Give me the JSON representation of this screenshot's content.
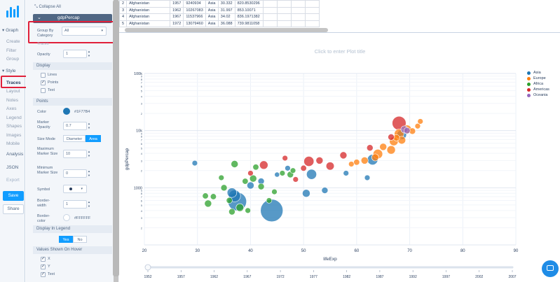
{
  "nav": {
    "sections": [
      "Graph",
      "Style"
    ],
    "graph_items": [
      "Create",
      "Filter",
      "Group"
    ],
    "style_items": [
      "Traces",
      "Layout",
      "Notes",
      "Axes",
      "Legend",
      "Shapes",
      "Images",
      "Mobile"
    ],
    "other_items": [
      "Analysis",
      "JSON",
      "Export"
    ],
    "save": "Save",
    "share": "Share"
  },
  "panel": {
    "collapse_all": "Collapse All",
    "trace_name": "gdpPercap",
    "group_by_label": "Group By Category",
    "group_by_value": "All",
    "traces_label": "Traces",
    "opacity_label": "Opacity",
    "opacity_value": "1",
    "display_header": "Display",
    "display_options": [
      {
        "label": "Lines",
        "checked": false
      },
      {
        "label": "Points",
        "checked": true
      },
      {
        "label": "Text",
        "checked": false
      }
    ],
    "points_header": "Points",
    "color_label": "Color",
    "color_value": "#1F77B4",
    "marker_opacity_label": "Marker Opacity",
    "marker_opacity_value": "0.7",
    "size_mode_label": "Size Mode",
    "size_mode_options": [
      "Diameter",
      "Area"
    ],
    "max_marker_label": "Maximum Marker Size",
    "max_marker_value": "10",
    "min_marker_label": "Minimum Marker Size",
    "min_marker_value": "0",
    "symbol_label": "Symbol",
    "border_width_label": "Border-width",
    "border_width_value": "1",
    "border_color_label": "Border-color",
    "border_color_value": "#FFFFFF",
    "display_legend_header": "Display In Legend",
    "legend_yes": "Yes",
    "legend_no": "No",
    "hover_header": "Values Shown On Hover",
    "hover_options": [
      "X",
      "Y",
      "Text"
    ]
  },
  "grid": {
    "rows": [
      [
        "2",
        "Afghanistan",
        "1957",
        "9240934",
        "Asia",
        "30.332",
        "820.8530296"
      ],
      [
        "3",
        "Afghanistan",
        "1962",
        "10267083",
        "Asia",
        "31.997",
        "853.10071"
      ],
      [
        "4",
        "Afghanistan",
        "1967",
        "11537966",
        "Asia",
        "34.02",
        "836.1971382"
      ],
      [
        "5",
        "Afghanistan",
        "1972",
        "13079460",
        "Asia",
        "36.088",
        "739.9811058"
      ]
    ]
  },
  "colors": {
    "Asia": "#1f77b4",
    "Europe": "#ff7f0e",
    "Africa": "#2ca02c",
    "Americas": "#d62728",
    "Oceania": "#9467bd"
  },
  "chart_data": {
    "type": "scatter",
    "title": "Click to enter Plot title",
    "xlabel": "lifeExp",
    "ylabel": "gdpPercap",
    "x_range": [
      20,
      90
    ],
    "y_range_log": [
      100,
      100000
    ],
    "y_scale": "log",
    "x_ticks": [
      "20",
      "30",
      "40",
      "50",
      "60",
      "70",
      "80",
      "90"
    ],
    "y_tick_labels": [
      "100k",
      "10k",
      "1000"
    ],
    "y_minor_labels": [
      "2",
      "3",
      "4",
      "5",
      "6",
      "7",
      "8",
      "9"
    ],
    "legend": [
      "Asia",
      "Europe",
      "Africa",
      "Americas",
      "Oceania"
    ],
    "slider_years": [
      "1952",
      "1957",
      "1962",
      "1967",
      "1972",
      "1977",
      "1982",
      "1987",
      "1992",
      "1997",
      "2002",
      "2007"
    ],
    "series": [
      {
        "name": "Asia",
        "points": [
          [
            44.0,
            400,
            1.0
          ],
          [
            37.5,
            575,
            0.68
          ],
          [
            37.0,
            720,
            0.28
          ],
          [
            36.5,
            820,
            0.18
          ],
          [
            51.5,
            1720,
            0.2
          ],
          [
            63.0,
            3100,
            0.22
          ],
          [
            68.5,
            8500,
            0.18
          ],
          [
            29.5,
            2700,
            0.06
          ],
          [
            54.0,
            900,
            0.08
          ],
          [
            47.0,
            2200,
            0.06
          ],
          [
            50.5,
            800,
            0.12
          ],
          [
            40.0,
            1100,
            0.1
          ],
          [
            58.0,
            1800,
            0.06
          ],
          [
            45.0,
            1700,
            0.05
          ],
          [
            62.0,
            1500,
            0.06
          ],
          [
            42.0,
            1300,
            0.08
          ]
        ]
      },
      {
        "name": "Europe",
        "points": [
          [
            64.0,
            3900,
            0.18
          ],
          [
            67.0,
            6500,
            0.15
          ],
          [
            68.0,
            8800,
            0.18
          ],
          [
            69.5,
            10500,
            0.15
          ],
          [
            66.5,
            4600,
            0.14
          ],
          [
            68.5,
            6800,
            0.12
          ],
          [
            70.5,
            9800,
            0.08
          ],
          [
            61.5,
            3000,
            0.1
          ],
          [
            65.0,
            5200,
            0.1
          ],
          [
            63.5,
            3400,
            0.1
          ],
          [
            71.5,
            12000,
            0.06
          ],
          [
            72.0,
            14500,
            0.06
          ],
          [
            60.0,
            2800,
            0.07
          ],
          [
            67.5,
            7500,
            0.08
          ],
          [
            59.0,
            2600,
            0.06
          ]
        ]
      },
      {
        "name": "Africa",
        "points": [
          [
            32.0,
            530,
            0.1
          ],
          [
            35.0,
            1000,
            0.08
          ],
          [
            38.0,
            450,
            0.12
          ],
          [
            40.5,
            1450,
            0.1
          ],
          [
            42.0,
            1050,
            0.08
          ],
          [
            39.0,
            1300,
            0.07
          ],
          [
            36.0,
            600,
            0.07
          ],
          [
            46.0,
            1800,
            0.06
          ],
          [
            41.0,
            2300,
            0.07
          ],
          [
            43.5,
            600,
            0.06
          ],
          [
            33.0,
            700,
            0.07
          ],
          [
            37.0,
            2600,
            0.1
          ],
          [
            47.5,
            1700,
            0.08
          ],
          [
            44.5,
            850,
            0.06
          ],
          [
            34.5,
            1500,
            0.06
          ],
          [
            39.5,
            400,
            0.06
          ],
          [
            31.5,
            720,
            0.07
          ],
          [
            48.0,
            2000,
            0.06
          ],
          [
            36.5,
            380,
            0.08
          ]
        ]
      },
      {
        "name": "Americas",
        "points": [
          [
            68.0,
            13500,
            0.38
          ],
          [
            51.0,
            2900,
            0.2
          ],
          [
            42.5,
            2500,
            0.14
          ],
          [
            55.0,
            2400,
            0.13
          ],
          [
            53.0,
            3000,
            0.1
          ],
          [
            57.5,
            3700,
            0.1
          ],
          [
            46.5,
            3300,
            0.06
          ],
          [
            66.5,
            7700,
            0.08
          ],
          [
            62.5,
            5000,
            0.08
          ],
          [
            50.0,
            2200,
            0.07
          ],
          [
            40.0,
            1800,
            0.06
          ],
          [
            48.5,
            1400,
            0.06
          ]
        ]
      },
      {
        "name": "Oceania",
        "points": [
          [
            69.0,
            10500,
            0.1
          ],
          [
            69.5,
            10000,
            0.08
          ]
        ]
      }
    ]
  }
}
